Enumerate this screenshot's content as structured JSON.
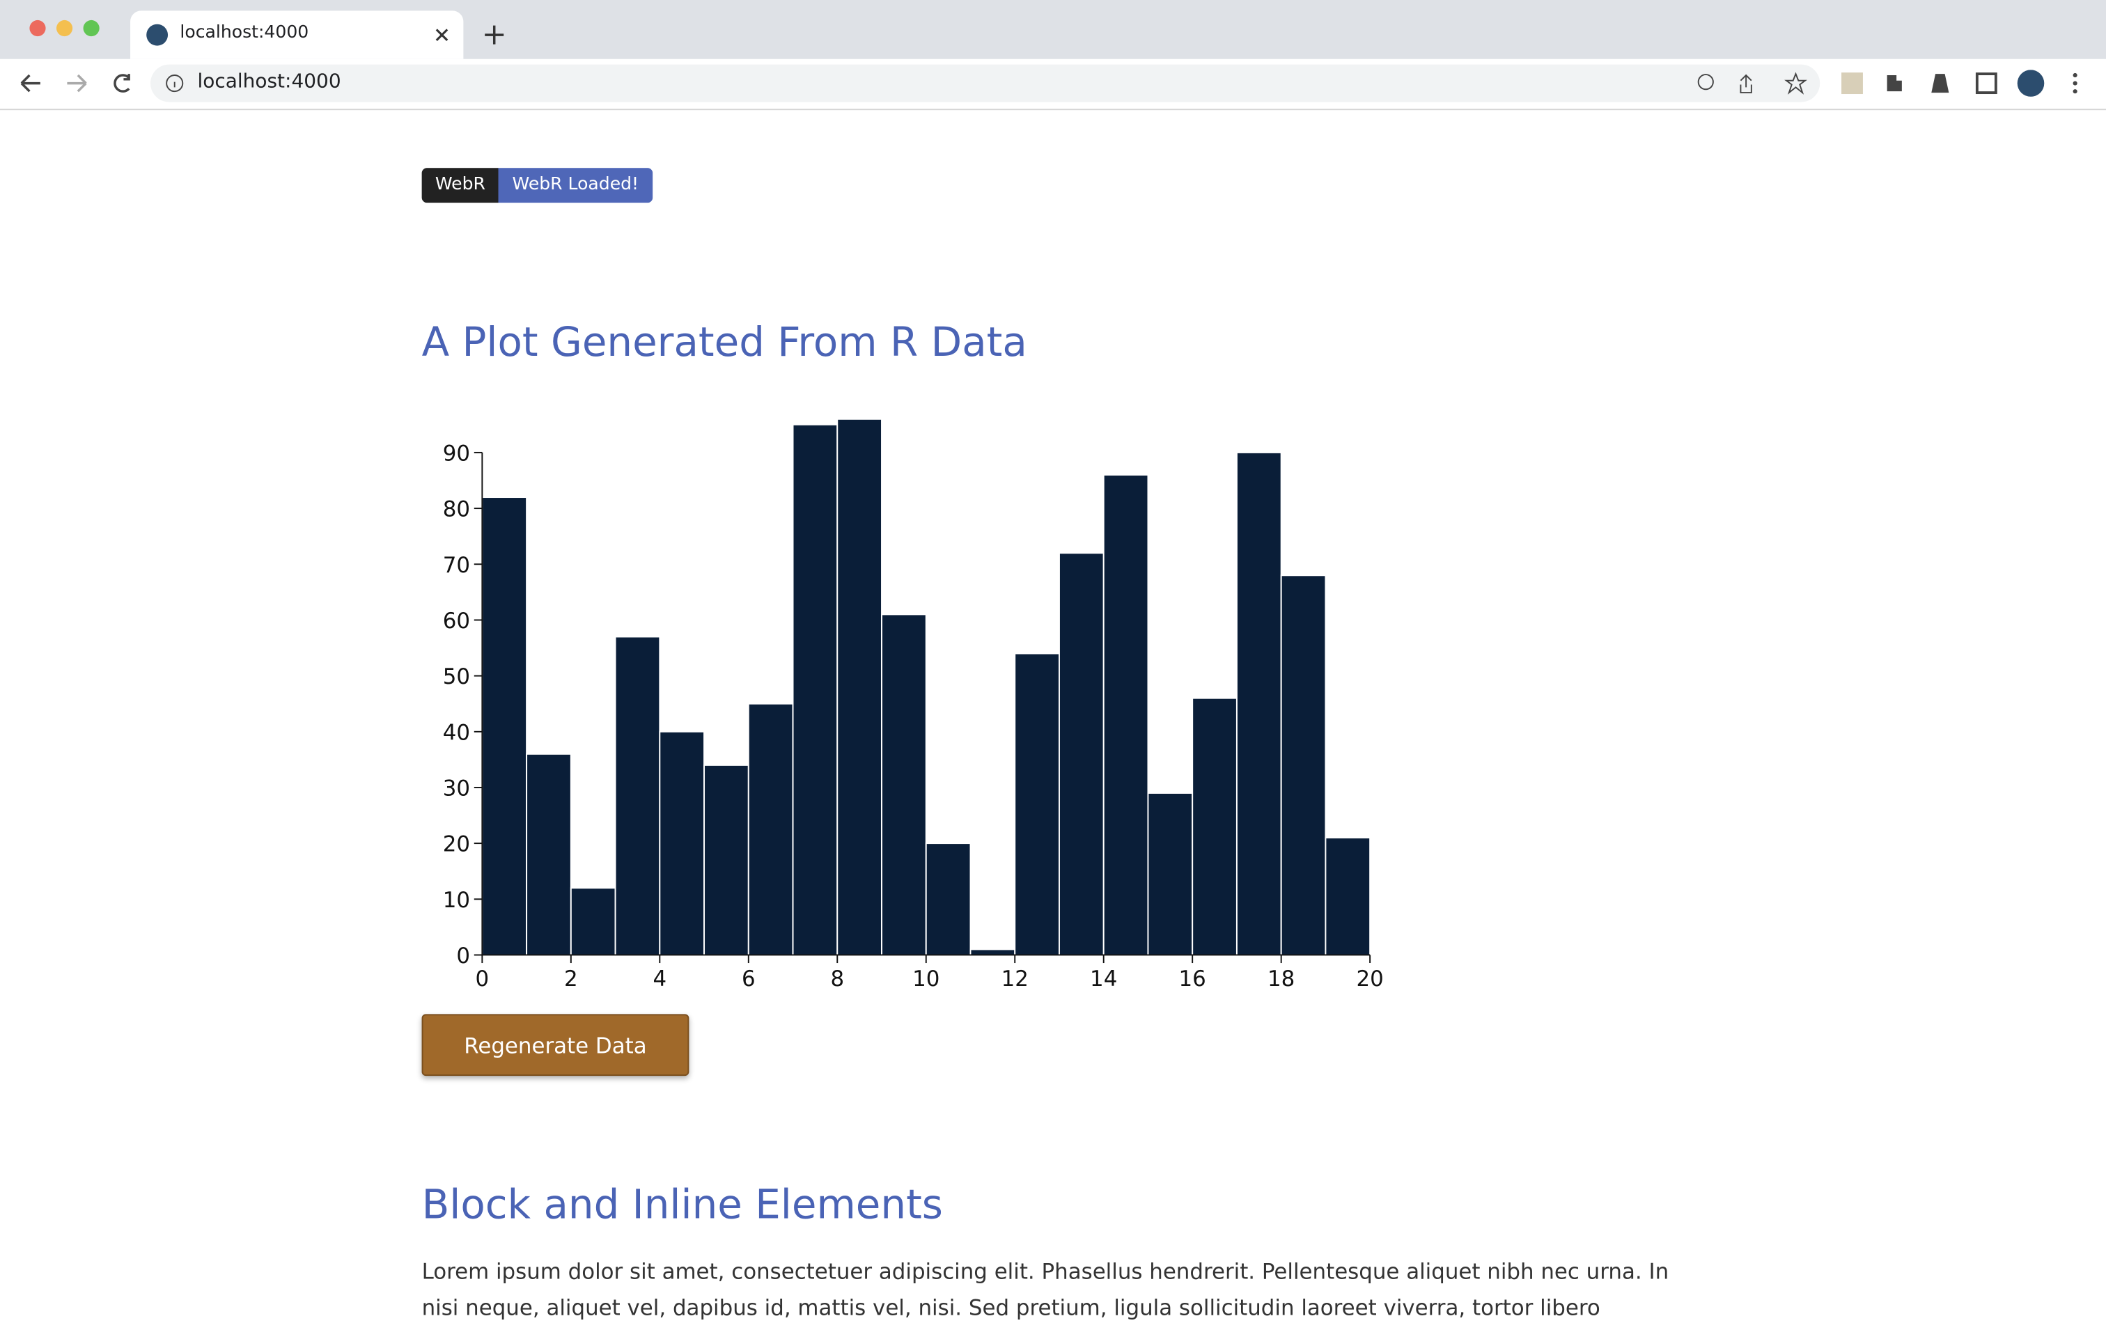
{
  "browser": {
    "tab_title": "localhost:4000",
    "url": "localhost:4000"
  },
  "badge": {
    "label": "WebR",
    "status": "WebR Loaded!"
  },
  "heading": "A Plot Generated From R Data",
  "chart_data": {
    "type": "histogram",
    "color": "#0a1e38",
    "bins": [
      0,
      1,
      2,
      3,
      4,
      5,
      6,
      7,
      8,
      9,
      10,
      11,
      12,
      13,
      14,
      15,
      16,
      17,
      18,
      19,
      20
    ],
    "values": [
      82,
      36,
      12,
      57,
      40,
      34,
      45,
      95,
      96,
      61,
      20,
      1,
      54,
      72,
      86,
      29,
      46,
      90,
      68,
      21
    ],
    "xlim": [
      0,
      20
    ],
    "xticks": [
      0,
      2,
      4,
      6,
      8,
      10,
      12,
      14,
      16,
      18,
      20
    ],
    "ylim": [
      0,
      96
    ],
    "yticks": [
      0,
      10,
      20,
      30,
      40,
      50,
      60,
      70,
      80,
      90
    ]
  },
  "button": "Regenerate Data",
  "section": {
    "heading": "Block and Inline Elements",
    "paragraph": "Lorem ipsum dolor sit amet, consectetuer adipiscing elit. Phasellus hendrerit. Pellentesque aliquet nibh nec urna. In nisi neque, aliquet vel, dapibus id, mattis vel, nisi. Sed pretium, ligula sollicitudin laoreet viverra, tortor libero sodales"
  }
}
